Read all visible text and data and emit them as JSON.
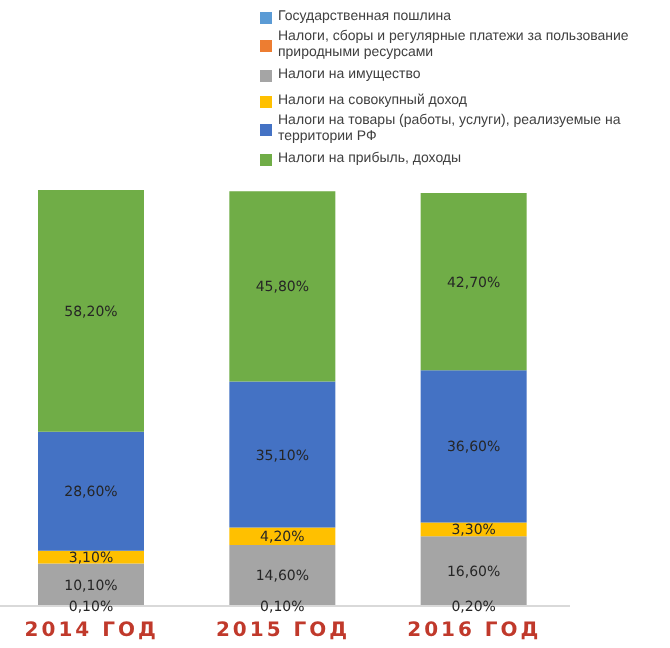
{
  "chart_data": {
    "type": "bar",
    "stacked": true,
    "categories": [
      "2014 ГОД",
      "2015 ГОД",
      "2016 ГОД"
    ],
    "legend": "top right",
    "series": [
      {
        "name": "Государственная пошлина",
        "color": "#5b9bd5",
        "values": [
          null,
          null,
          null
        ]
      },
      {
        "name": "Налоги, сборы и регулярные платежи за пользование природными ресурсами",
        "color": "#ed7d31",
        "values": [
          0.1,
          0.1,
          0.2
        ],
        "value_labels": [
          "0,10%",
          "0,10%",
          "0,20%"
        ]
      },
      {
        "name": "Налоги на имущество",
        "color": "#a5a5a5",
        "values": [
          10.1,
          14.6,
          16.6
        ],
        "value_labels": [
          "10,10%",
          "14,60%",
          "16,60%"
        ]
      },
      {
        "name": "Налоги на совокупный доход",
        "color": "#ffc000",
        "values": [
          3.1,
          4.2,
          3.3
        ],
        "value_labels": [
          "3,10%",
          "4,20%",
          "3,30%"
        ]
      },
      {
        "name": "Налоги на товары (работы, услуги), реализуемые на территории РФ",
        "color": "#4472c4",
        "values": [
          28.6,
          35.1,
          36.6
        ],
        "value_labels": [
          "28,60%",
          "35,10%",
          "36,60%"
        ]
      },
      {
        "name": "Налоги на прибыль, доходы",
        "color": "#70ad47",
        "values": [
          58.2,
          45.8,
          42.7
        ],
        "value_labels": [
          "58,20%",
          "45,80%",
          "42,70%"
        ]
      }
    ]
  }
}
